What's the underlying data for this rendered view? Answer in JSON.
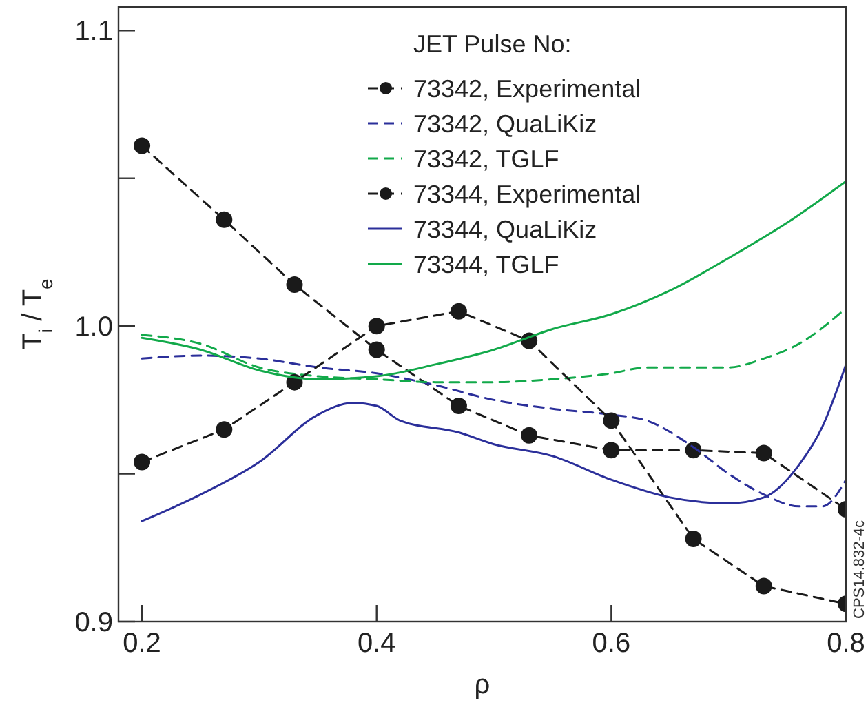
{
  "chart_data": {
    "type": "line",
    "xlabel": "ρ",
    "ylabel": "T$_{i}$ / T$_{e}$",
    "legend_title": "JET Pulse No:",
    "legend": "top",
    "xlim": [
      0.18,
      0.8
    ],
    "ylim": [
      0.9,
      1.108
    ],
    "xticks": [
      0.2,
      0.4,
      0.6,
      0.8
    ],
    "yticks": [
      0.9,
      {
        "value": 0.95,
        "label": null
      },
      {
        "value": 1.0,
        "label": "1.0"
      },
      {
        "value": 1.05,
        "label": null
      },
      1.1
    ],
    "grid": false,
    "annotations": [
      "CPS14.832-4c"
    ],
    "series": [
      {
        "name": "73342, Experimental",
        "color": "#1a1a1a",
        "marker": "circle",
        "line_style": "dashed",
        "x": [
          0.2,
          0.27,
          0.33,
          0.4,
          0.47,
          0.53,
          0.6,
          0.67,
          0.73,
          0.8
        ],
        "values": [
          1.061,
          1.036,
          1.014,
          0.992,
          0.973,
          0.963,
          0.958,
          0.958,
          0.957,
          0.938
        ]
      },
      {
        "name": "73342, QuaLiKiz",
        "color": "#2b2f9a",
        "marker": "none",
        "line_style": "dashed",
        "x": [
          0.2,
          0.25,
          0.3,
          0.35,
          0.4,
          0.45,
          0.5,
          0.55,
          0.6,
          0.63,
          0.67,
          0.7,
          0.73,
          0.76,
          0.78,
          0.8
        ],
        "values": [
          0.989,
          0.99,
          0.989,
          0.986,
          0.984,
          0.98,
          0.975,
          0.972,
          0.97,
          0.968,
          0.959,
          0.95,
          0.943,
          0.939,
          0.939,
          0.948
        ]
      },
      {
        "name": "73342, TGLF",
        "color": "#12a94a",
        "marker": "none",
        "line_style": "dashed",
        "x": [
          0.2,
          0.25,
          0.3,
          0.35,
          0.4,
          0.45,
          0.5,
          0.55,
          0.6,
          0.63,
          0.67,
          0.7,
          0.73,
          0.76,
          0.8
        ],
        "values": [
          0.997,
          0.994,
          0.986,
          0.983,
          0.982,
          0.981,
          0.981,
          0.982,
          0.984,
          0.986,
          0.986,
          0.986,
          0.989,
          0.994,
          1.006
        ]
      },
      {
        "name": "73344, Experimental",
        "color": "#1a1a1a",
        "marker": "circle",
        "line_style": "dashed",
        "x": [
          0.2,
          0.27,
          0.33,
          0.4,
          0.47,
          0.53,
          0.6,
          0.67,
          0.73,
          0.8
        ],
        "values": [
          0.954,
          0.965,
          0.981,
          1.0,
          1.005,
          0.995,
          0.968,
          0.928,
          0.912,
          0.906
        ]
      },
      {
        "name": "73344, QuaLiKiz",
        "color": "#2b2f9a",
        "marker": "none",
        "line_style": "solid",
        "x": [
          0.2,
          0.25,
          0.3,
          0.35,
          0.38,
          0.4,
          0.42,
          0.47,
          0.5,
          0.55,
          0.6,
          0.65,
          0.7,
          0.73,
          0.76,
          0.78,
          0.8
        ],
        "values": [
          0.934,
          0.943,
          0.954,
          0.97,
          0.974,
          0.973,
          0.968,
          0.964,
          0.96,
          0.956,
          0.948,
          0.942,
          0.94,
          0.942,
          0.953,
          0.966,
          0.987
        ]
      },
      {
        "name": "73344, TGLF",
        "color": "#12a94a",
        "marker": "none",
        "line_style": "solid",
        "x": [
          0.2,
          0.25,
          0.3,
          0.35,
          0.4,
          0.45,
          0.5,
          0.55,
          0.6,
          0.65,
          0.7,
          0.75,
          0.8
        ],
        "values": [
          0.996,
          0.992,
          0.985,
          0.982,
          0.983,
          0.987,
          0.992,
          0.999,
          1.004,
          1.012,
          1.023,
          1.035,
          1.049
        ]
      }
    ]
  }
}
